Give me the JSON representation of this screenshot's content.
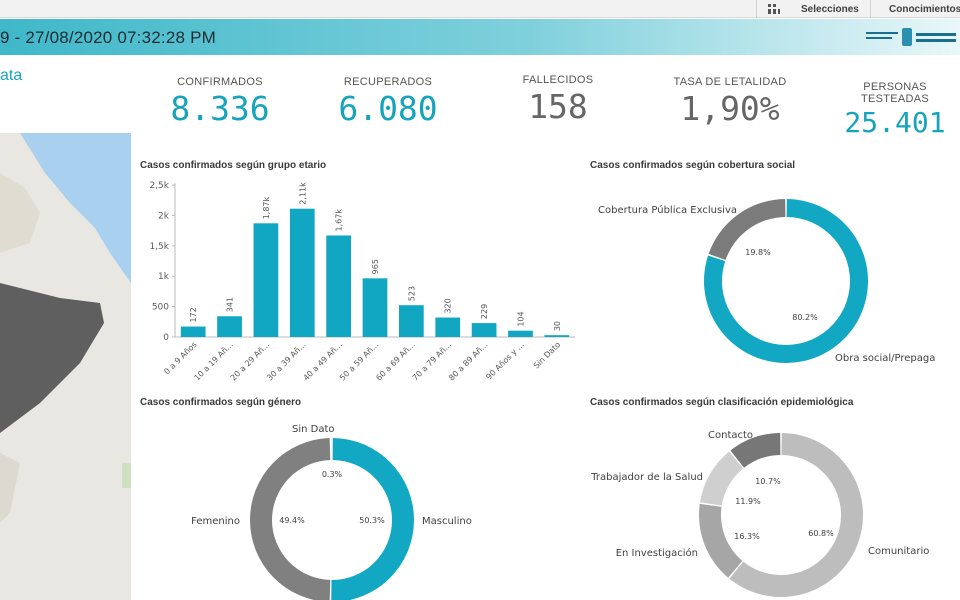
{
  "toolbar": {
    "selections_label": "Selecciones",
    "insights_label": "Conocimientos"
  },
  "header": {
    "title": "9 - 27/08/2020 07:32:28 PM"
  },
  "subtitle": "ata",
  "kpis": [
    {
      "label": "CONFIRMADOS",
      "value": "8.336",
      "color": "#16a4bd"
    },
    {
      "label": "RECUPERADOS",
      "value": "6.080",
      "color": "#16a4bd"
    },
    {
      "label": "FALLECIDOS",
      "value": "158",
      "color": "#666666"
    },
    {
      "label": "TASA DE LETALIDAD",
      "value": "1,90%",
      "color": "#666666"
    },
    {
      "label": "PERSONAS TESTEADAS",
      "value": "25.401",
      "color": "#16a4bd"
    }
  ],
  "charts": {
    "age": {
      "title": "Casos confirmados según grupo etario"
    },
    "coverage": {
      "title": "Casos confirmados según cobertura social"
    },
    "gender": {
      "title": "Casos confirmados según género"
    },
    "epi": {
      "title": "Casos confirmados según clasificación epidemiológica"
    }
  },
  "chart_data": [
    {
      "type": "bar",
      "title": "Casos confirmados según grupo etario",
      "categories": [
        "0 a 9 Años",
        "10 a 19 Añ...",
        "20 a 29 Añ...",
        "30 a 39 Añ...",
        "40 a 49 Añ...",
        "50 a 59 Añ...",
        "60 a 69 Añ...",
        "70 a 79 Añ...",
        "80 a 89 Añ...",
        "90 Años y ...",
        "Sin Dato"
      ],
      "values": [
        172,
        341,
        1870,
        2110,
        1670,
        965,
        523,
        320,
        229,
        104,
        30
      ],
      "value_labels": [
        "172",
        "341",
        "1,87k",
        "2,11k",
        "1,67k",
        "965",
        "523",
        "320",
        "229",
        "104",
        "30"
      ],
      "ylim": [
        0,
        2500
      ],
      "yticks": [
        "0",
        "500",
        "1k",
        "1,5k",
        "2k",
        "2,5k"
      ],
      "color": "#11a7c3"
    },
    {
      "type": "pie",
      "title": "Casos confirmados según cobertura social",
      "slices": [
        {
          "label": "Cobertura Pública Exclusiva",
          "value": 19.8,
          "pct": "19.8%",
          "color": "#7b7b7b"
        },
        {
          "label": "Obra social/Prepaga",
          "value": 80.2,
          "pct": "80.2%",
          "color": "#12a8c3"
        }
      ]
    },
    {
      "type": "pie",
      "title": "Casos confirmados según género",
      "slices": [
        {
          "label": "Masculino",
          "value": 50.3,
          "pct": "50.3%",
          "color": "#12a8c3"
        },
        {
          "label": "Femenino",
          "value": 49.4,
          "pct": "49.4%",
          "color": "#808080"
        },
        {
          "label": "Sin Dato",
          "value": 0.3,
          "pct": "0.3%",
          "color": "#b5b5b5"
        }
      ]
    },
    {
      "type": "pie",
      "title": "Casos confirmados según clasificación epidemiológica",
      "slices": [
        {
          "label": "Comunitario",
          "value": 60.8,
          "pct": "60.8%",
          "color": "#bdbdbd"
        },
        {
          "label": "En Investigación",
          "value": 16.3,
          "pct": "16.3%",
          "color": "#a6a6a6"
        },
        {
          "label": "Trabajador de la Salud",
          "value": 11.9,
          "pct": "11.9%",
          "color": "#cfcfcf"
        },
        {
          "label": "Contacto",
          "value": 10.7,
          "pct": "10.7%",
          "color": "#777777"
        }
      ]
    }
  ]
}
